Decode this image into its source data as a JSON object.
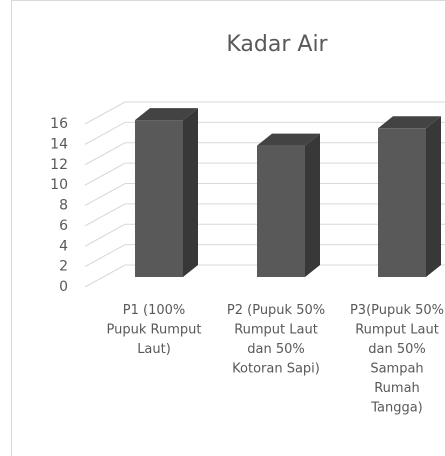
{
  "chart_data": {
    "type": "bar3d",
    "title": "Kadar Air",
    "categories": [
      "P1 (100%\nPupuk Rumput\nLaut)",
      "P2 (Pupuk 50%\nRumput Laut\ndan 50%\nKotoran Sapi)",
      "P3(Pupuk 50%\nRumput Laut\ndan 50%\nSampah\nRumah\nTangga)"
    ],
    "values": [
      15.4,
      12.9,
      14.6
    ],
    "color": "#595959",
    "ylim": [
      0,
      16
    ],
    "yticks": [
      0,
      2,
      4,
      6,
      8,
      10,
      12,
      14,
      16
    ],
    "grid": true
  }
}
